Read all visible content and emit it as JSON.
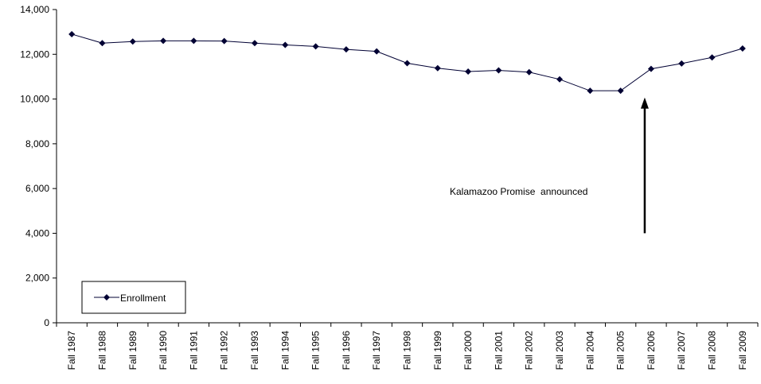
{
  "chart_data": {
    "type": "line",
    "title": "",
    "xlabel": "",
    "ylabel": "",
    "categories": [
      "Fall 1987",
      "Fall 1988",
      "Fall 1989",
      "Fall 1990",
      "Fall 1991",
      "Fall 1992",
      "Fall 1993",
      "Fall 1994",
      "Fall 1995",
      "Fall 1996",
      "Fall 1997",
      "Fall 1998",
      "Fall 1999",
      "Fall 2000",
      "Fall 2001",
      "Fall 2002",
      "Fall 2003",
      "Fall 2004",
      "Fall 2005",
      "Fall 2006",
      "Fall 2007",
      "Fall 2008",
      "Fall 2009"
    ],
    "series": [
      {
        "name": "Enrollment",
        "color": "#000033",
        "marker": "diamond",
        "values": [
          12900,
          12500,
          12570,
          12600,
          12600,
          12590,
          12500,
          12420,
          12350,
          12220,
          12130,
          11600,
          11380,
          11230,
          11280,
          11200,
          10880,
          10370,
          10370,
          11350,
          11590,
          11860,
          12260
        ]
      }
    ],
    "ylim": [
      0,
      14000
    ],
    "yticks": [
      0,
      2000,
      4000,
      6000,
      8000,
      10000,
      12000,
      14000
    ],
    "ytick_labels": [
      "0",
      "2,000",
      "4,000",
      "6,000",
      "8,000",
      "10,000",
      "12,000",
      "14,000"
    ],
    "grid": false,
    "legend": {
      "position": "bottom-left",
      "label": "Enrollment"
    },
    "annotation": {
      "text": "Kalamazoo Promise  announced",
      "arrow_x_category": "Fall 2006",
      "arrow_from_value": 4000,
      "arrow_to_value": 10000
    }
  }
}
